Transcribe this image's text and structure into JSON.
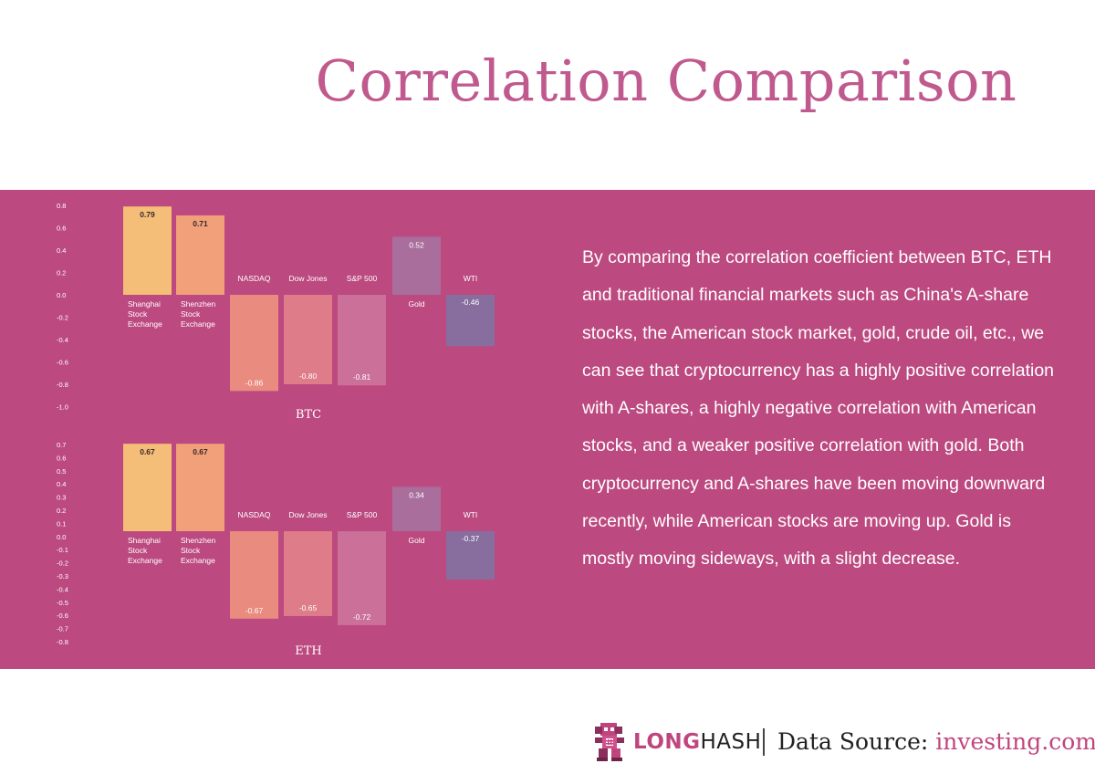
{
  "title": "Correlation Comparison",
  "colors": {
    "background": "#ffffff",
    "panel": "#bc497f",
    "title": "#c05a8e",
    "bars": [
      "#f4bd78",
      "#f1a07a",
      "#ea8b7f",
      "#de7d89",
      "#cb7098",
      "#a96e9c",
      "#876e9e"
    ]
  },
  "description": "By comparing the correlation coefficient between BTC, ETH and traditional financial markets such as China's A-share stocks, the American stock market, gold, crude oil, etc., we can see that cryptocurrency has a highly positive correlation with A-shares, a highly negative correlation with American stocks, and a weaker positive correlation with gold. Both cryptocurrency and A-shares have been moving downward recently, while American stocks are moving up. Gold is mostly moving sideways, with a slight decrease.",
  "footer": {
    "brand_long": "LONG",
    "brand_hash": "HASH",
    "source_label": "Data Source:",
    "source_site": "investing.com",
    "logo_icon": "pixel-monkey-logo-icon"
  },
  "chart_data": [
    {
      "type": "bar",
      "title": "BTC",
      "categories": [
        "Shanghai Stock Exchange",
        "Shenzhen Stock Exchange",
        "NASDAQ",
        "Dow Jones",
        "S&P 500",
        "Gold",
        "WTI"
      ],
      "category_lines": [
        [
          "Shanghai",
          "Stock",
          "Exchange"
        ],
        [
          "Shenzhen",
          "Stock",
          "Exchange"
        ],
        [
          "NASDAQ"
        ],
        [
          "Dow Jones"
        ],
        [
          "S&P 500"
        ],
        [
          "Gold"
        ],
        [
          "WTI"
        ]
      ],
      "values": [
        0.79,
        0.71,
        -0.86,
        -0.8,
        -0.81,
        0.52,
        -0.46
      ],
      "value_labels": [
        "0.79",
        "0.71",
        "-0.86",
        "-0.80",
        "-0.81",
        "0.52",
        "-0.46"
      ],
      "yticks": [
        "0.8",
        "0.6",
        "0.4",
        "0.2",
        "0.0",
        "-0.2",
        "-0.4",
        "-0.6",
        "-0.8",
        "-1.0"
      ],
      "ylim": [
        -1.0,
        0.8
      ],
      "grid": false
    },
    {
      "type": "bar",
      "title": "ETH",
      "categories": [
        "Shanghai Stock Exchange",
        "Shenzhen Stock Exchange",
        "NASDAQ",
        "Dow Jones",
        "S&P 500",
        "Gold",
        "WTI"
      ],
      "category_lines": [
        [
          "Shanghai",
          "Stock",
          "Exchange"
        ],
        [
          "Shenzhen",
          "Stock",
          "Exchange"
        ],
        [
          "NASDAQ"
        ],
        [
          "Dow Jones"
        ],
        [
          "S&P 500"
        ],
        [
          "Gold"
        ],
        [
          "WTI"
        ]
      ],
      "values": [
        0.67,
        0.67,
        -0.67,
        -0.65,
        -0.72,
        0.34,
        -0.37
      ],
      "value_labels": [
        "0.67",
        "0.67",
        "-0.67",
        "-0.65",
        "-0.72",
        "0.34",
        "-0.37"
      ],
      "yticks": [
        "0.7",
        "0.6",
        "0.5",
        "0.4",
        "0.3",
        "0.2",
        "0.1",
        "0.0",
        "-0.1",
        "-0.2",
        "-0.3",
        "-0.4",
        "-0.5",
        "-0.6",
        "-0.7",
        "-0.8"
      ],
      "ylim": [
        -0.8,
        0.7
      ],
      "grid": false
    }
  ]
}
